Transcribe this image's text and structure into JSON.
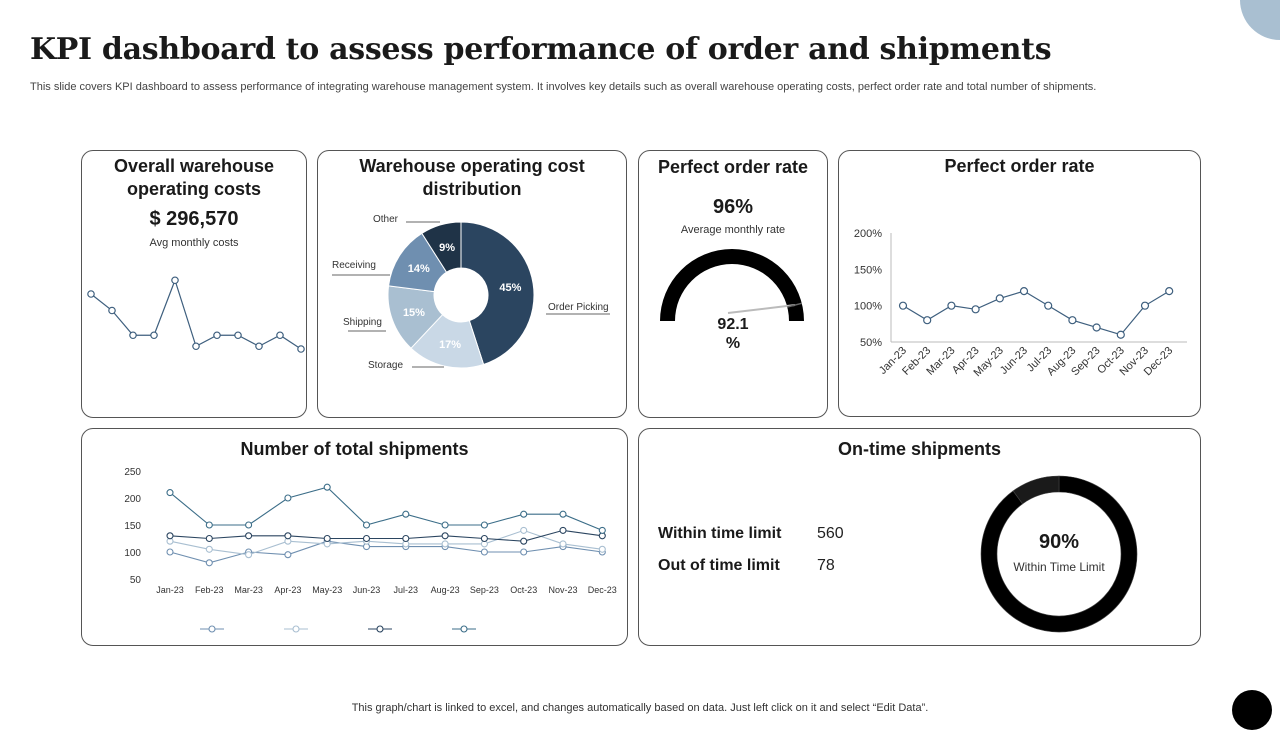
{
  "header": {
    "title": "KPI dashboard to assess performance of order and shipments",
    "subtitle": "This slide covers KPI dashboard to assess performance of integrating warehouse management system. It involves key details such as overall warehouse operating costs, perfect order rate and total number of shipments."
  },
  "costs_panel": {
    "title": "Overall warehouse operating costs",
    "value": "$ 296,570",
    "caption": "Avg  monthly costs"
  },
  "distribution_panel": {
    "title": "Warehouse operating cost distribution"
  },
  "gauge_panel": {
    "title": "Perfect order rate",
    "value": "96%",
    "caption": "Average  monthly rate",
    "gauge_value_line1": "92.1",
    "gauge_value_line2": "%"
  },
  "rate_panel": {
    "title": "Perfect order rate"
  },
  "shipments_panel": {
    "title": "Number of total shipments"
  },
  "ontime_panel": {
    "title": "On-time shipments",
    "rows": [
      {
        "label": "Within time limit",
        "value": "560"
      },
      {
        "label": "Out of time limit",
        "value": "78"
      }
    ],
    "donut_value": "90%",
    "donut_caption": "Within Time Limit"
  },
  "footer": {
    "note": "This graph/chart is linked to excel,  and changes automatically based on data. Just left click on it and select “Edit Data”."
  },
  "colors": {
    "navy": "#2b4560",
    "steel": "#6f8fb0",
    "light_blue": "#a9bfd1",
    "pale_blue": "#c9d8e6",
    "accent": "#a9bfd1",
    "black": "#000000",
    "line": "#3e5f7e"
  },
  "chart_data": [
    {
      "id": "operating_costs_trend",
      "type": "line",
      "title": "Overall warehouse operating costs",
      "x": [
        1,
        2,
        3,
        4,
        5,
        6,
        7,
        8,
        9,
        10,
        11,
        12
      ],
      "values": [
        28,
        22,
        13,
        13,
        33,
        9,
        13,
        13,
        9,
        13,
        8,
        null
      ],
      "ylim": [
        0,
        40
      ],
      "grid": false,
      "legend": "none"
    },
    {
      "id": "cost_distribution",
      "type": "pie",
      "title": "Warehouse operating cost distribution",
      "categories": [
        "Order Picking",
        "Storage",
        "Shipping",
        "Receiving",
        "Other"
      ],
      "values": [
        45,
        17,
        15,
        14,
        9
      ],
      "data_labels": [
        "45%",
        "17%",
        "15%",
        "14%",
        "9%"
      ],
      "colors": [
        "#2b4560",
        "#c9d8e6",
        "#a9bfd1",
        "#6f8fb0",
        "#1f3347"
      ],
      "donut": true,
      "legend": "callout-labels"
    },
    {
      "id": "order_rate_gauge",
      "type": "gauge",
      "value": 92.1,
      "range": [
        0,
        100
      ]
    },
    {
      "id": "perfect_order_rate_trend",
      "type": "line",
      "title": "Perfect order rate",
      "categories": [
        "Jan-23",
        "Feb-23",
        "Mar-23",
        "Apr-23",
        "May-23",
        "Jun-23",
        "Jul-23",
        "Aug-23",
        "Sep-23",
        "Oct-23",
        "Nov-23",
        "Dec-23"
      ],
      "values": [
        100,
        80,
        100,
        95,
        110,
        120,
        100,
        80,
        70,
        60,
        100,
        120
      ],
      "yticks": [
        "50%",
        "100%",
        "150%",
        "200%"
      ],
      "ylim": [
        50,
        200
      ],
      "grid": false,
      "legend": "none"
    },
    {
      "id": "total_shipments",
      "type": "line",
      "title": "Number of total shipments",
      "categories": [
        "Jan-23",
        "Feb-23",
        "Mar-23",
        "Apr-23",
        "May-23",
        "Jun-23",
        "Jul-23",
        "Aug-23",
        "Sep-23",
        "Oct-23",
        "Nov-23",
        "Dec-23"
      ],
      "yticks": [
        50,
        100,
        150,
        200,
        250
      ],
      "ylim": [
        50,
        250
      ],
      "series": [
        {
          "color": "#6f8fb0",
          "values": [
            100,
            80,
            100,
            95,
            120,
            110,
            110,
            110,
            100,
            100,
            110,
            100
          ]
        },
        {
          "color": "#a9bfd1",
          "values": [
            120,
            105,
            95,
            120,
            115,
            120,
            115,
            115,
            115,
            140,
            115,
            105
          ]
        },
        {
          "color": "#2b4560",
          "values": [
            130,
            125,
            130,
            130,
            125,
            125,
            125,
            130,
            125,
            120,
            140,
            130
          ]
        },
        {
          "color": "#3b6d88",
          "values": [
            210,
            150,
            150,
            200,
            220,
            150,
            170,
            150,
            150,
            170,
            170,
            140
          ]
        }
      ],
      "legend": "bottom"
    },
    {
      "id": "on_time_donut",
      "type": "pie",
      "donut": true,
      "categories": [
        "Within time limit",
        "Out of time limit"
      ],
      "values": [
        90,
        10
      ],
      "colors": [
        "#000000",
        "#1a1a1a"
      ]
    }
  ]
}
